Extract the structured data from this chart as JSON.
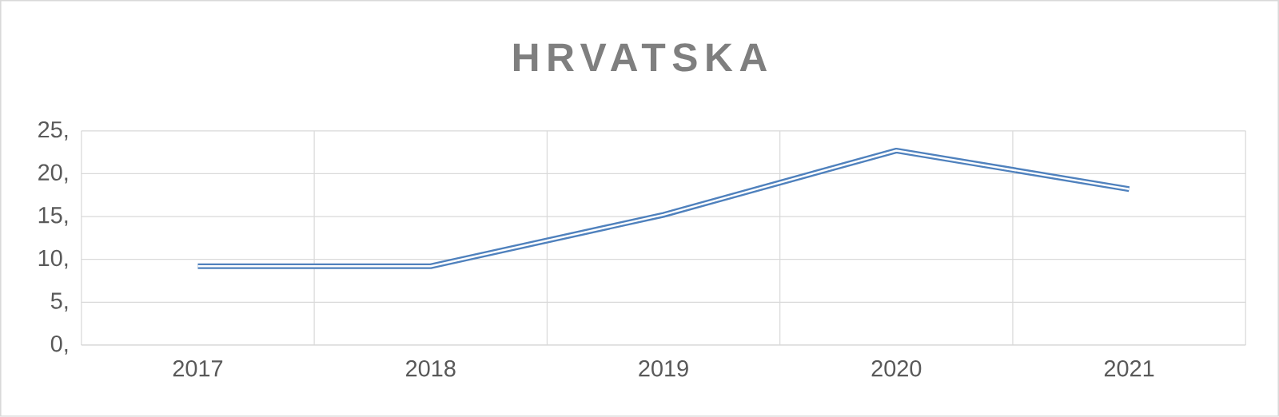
{
  "chart_data": {
    "type": "line",
    "title": "HRVATSKA",
    "categories": [
      "2017",
      "2018",
      "2019",
      "2020",
      "2021"
    ],
    "series": [
      {
        "color": "#4f81bd",
        "values": [
          9.2,
          9.2,
          15.2,
          22.7,
          18.2
        ]
      }
    ],
    "ylim": [
      0,
      25
    ],
    "yticks": [
      {
        "value": 0,
        "label": "0,"
      },
      {
        "value": 5,
        "label": "5,"
      },
      {
        "value": 10,
        "label": "10,"
      },
      {
        "value": 15,
        "label": "15,"
      },
      {
        "value": 20,
        "label": "20,"
      },
      {
        "value": 25,
        "label": "25,"
      }
    ],
    "grid": true,
    "marker": "none",
    "line_style": "solid"
  }
}
